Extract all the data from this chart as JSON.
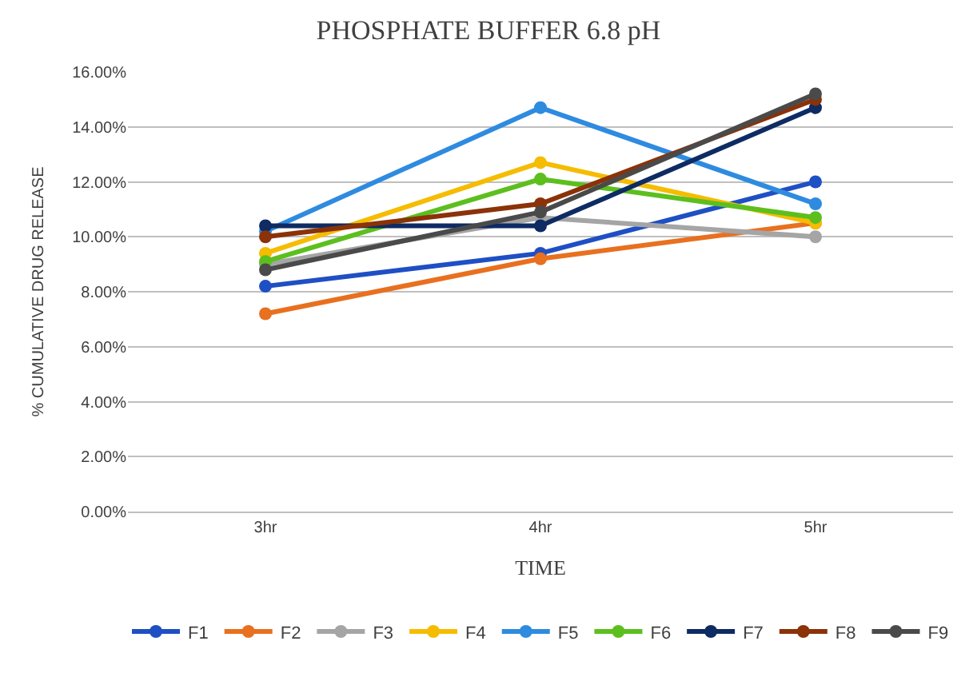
{
  "chart_data": {
    "type": "line",
    "title": "PHOSPHATE BUFFER 6.8 pH",
    "xlabel": "TIME",
    "ylabel": "% CUMULATIVE DRUG RELEASE",
    "categories": [
      "3hr",
      "4hr",
      "5hr"
    ],
    "series": [
      {
        "name": "F1",
        "color": "#1f4fc4",
        "values": [
          8.2,
          9.4,
          12.0
        ]
      },
      {
        "name": "F2",
        "color": "#e8701f",
        "values": [
          7.2,
          9.2,
          10.5
        ]
      },
      {
        "name": "F3",
        "color": "#a5a5a5",
        "values": [
          9.0,
          10.7,
          10.0
        ]
      },
      {
        "name": "F4",
        "color": "#f5bc00",
        "values": [
          9.4,
          12.7,
          10.5
        ]
      },
      {
        "name": "F5",
        "color": "#2e8be0",
        "values": [
          10.2,
          14.7,
          11.2
        ]
      },
      {
        "name": "F6",
        "color": "#5cbf1e",
        "values": [
          9.1,
          12.1,
          10.7
        ]
      },
      {
        "name": "F7",
        "color": "#0e2b63",
        "values": [
          10.4,
          10.4,
          14.7
        ]
      },
      {
        "name": "F8",
        "color": "#8b3208",
        "values": [
          10.0,
          11.2,
          15.0
        ]
      },
      {
        "name": "F9",
        "color": "#4a4a4a",
        "values": [
          8.8,
          10.9,
          15.2
        ]
      }
    ],
    "ylim": [
      0,
      16
    ],
    "yticks": [
      {
        "value": 0,
        "label": "0.00%"
      },
      {
        "value": 2,
        "label": "2.00%"
      },
      {
        "value": 4,
        "label": "4.00%"
      },
      {
        "value": 6,
        "label": "6.00%"
      },
      {
        "value": 8,
        "label": "8.00%"
      },
      {
        "value": 10,
        "label": "10.00%"
      },
      {
        "value": 12,
        "label": "12.00%"
      },
      {
        "value": 14,
        "label": "14.00%"
      },
      {
        "value": 16,
        "label": "16.00%"
      }
    ],
    "grid": "y",
    "legend": "bottom",
    "marker": "circle",
    "line_style": "solid"
  }
}
